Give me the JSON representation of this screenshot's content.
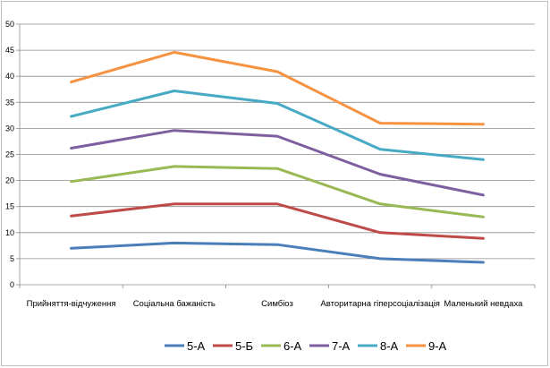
{
  "chart_data": {
    "type": "line",
    "categories": [
      "Прийняття-відчуження",
      "Соціальна бажаність",
      "Симбіоз",
      "Авторитарна гіперсоціалізація",
      "Маленький невдаха"
    ],
    "ylim": [
      0,
      50
    ],
    "yticks": [
      0,
      5,
      10,
      15,
      20,
      25,
      30,
      35,
      40,
      45,
      50
    ],
    "grid": true,
    "legend_position": "bottom",
    "title": "",
    "xlabel": "",
    "ylabel": "",
    "series": [
      {
        "name": "5-А",
        "color": "#4a7ebb",
        "values": [
          7.0,
          8.0,
          7.7,
          5.0,
          4.3
        ]
      },
      {
        "name": "5-Б",
        "color": "#be4b48",
        "values": [
          13.2,
          15.5,
          15.5,
          10.0,
          8.9
        ]
      },
      {
        "name": "6-А",
        "color": "#98b954",
        "values": [
          19.8,
          22.7,
          22.3,
          15.5,
          13.0
        ]
      },
      {
        "name": "7-А",
        "color": "#7d5fa0",
        "values": [
          26.2,
          29.6,
          28.5,
          21.2,
          17.2
        ]
      },
      {
        "name": "8-А",
        "color": "#46aac5",
        "values": [
          32.3,
          37.2,
          34.8,
          26.0,
          24.0
        ]
      },
      {
        "name": "9-А",
        "color": "#f69240",
        "values": [
          38.9,
          44.6,
          40.9,
          31.0,
          30.8
        ]
      }
    ]
  }
}
